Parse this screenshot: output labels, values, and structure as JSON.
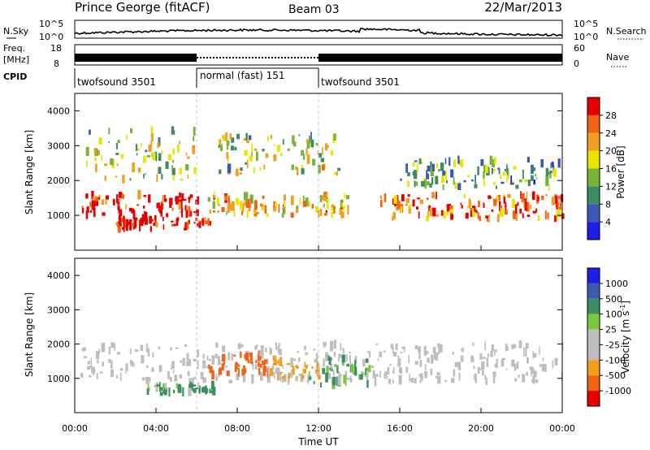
{
  "header": {
    "station": "Prince George (fitACF)",
    "beam": "Beam 03",
    "date": "22/Mar/2013"
  },
  "noise_panel": {
    "left_label": "N.Sky",
    "left_ticks": [
      "10^5",
      "10^0"
    ],
    "right_label": "N.Search",
    "right_ticks": [
      "10^5",
      "10^0"
    ]
  },
  "freq_panel": {
    "left_label_1": "Freq.",
    "left_label_2": "[MHz]",
    "left_ticks": [
      "18",
      "8"
    ],
    "right_label": "Nave",
    "right_ticks": [
      "60",
      "0"
    ]
  },
  "cpid": {
    "label": "CPID",
    "segments": [
      {
        "name": "twofsound 3501",
        "start": 0,
        "end": 6
      },
      {
        "name": "normal (fast) 151",
        "start": 6,
        "end": 12
      },
      {
        "name": "twofsound 3501",
        "start": 12,
        "end": 24
      }
    ]
  },
  "x_axis": {
    "label": "Time UT",
    "ticks": [
      "00:00",
      "04:00",
      "08:00",
      "12:00",
      "16:00",
      "20:00",
      "00:00"
    ]
  },
  "colors": {
    "power": [
      "#1e1ee6",
      "#3c5ab4",
      "#3c8c64",
      "#78b43c",
      "#e6e600",
      "#f0a01e",
      "#f06414",
      "#e60000"
    ],
    "velocity": [
      "#1e1ee6",
      "#3c5ab4",
      "#3c8c64",
      "#78c83c",
      "#bebebe",
      "#bebebe",
      "#f0a01e",
      "#f06414",
      "#e60000"
    ],
    "grey_scatter": "#bebebe"
  },
  "chart_data": [
    {
      "type": "heatmap",
      "title": "Power",
      "ylabel": "Slant Range [km]",
      "xlabel": "Time UT",
      "xlim": [
        "00:00",
        "24:00"
      ],
      "ylim": [
        0,
        4500
      ],
      "yticks": [
        1000,
        2000,
        3000,
        4000
      ],
      "colorbar": {
        "label": "Power [dB]",
        "ticks": [
          "4",
          "8",
          "12",
          "16",
          "20",
          "24",
          "28"
        ]
      },
      "features": [
        {
          "name": "main echo band",
          "t_start": 0.2,
          "t_end": 6.2,
          "range_km": [
            1000,
            1600
          ],
          "level_db": 28
        },
        {
          "name": "upper echo",
          "t_start": 0.5,
          "t_end": 6.0,
          "range_km": [
            2000,
            3500
          ],
          "level_db": 16
        },
        {
          "name": "ground band",
          "t_start": 2.0,
          "t_end": 6.8,
          "range_km": [
            600,
            900
          ],
          "level_db": 28
        },
        {
          "name": "mid band",
          "t_start": 6.5,
          "t_end": 13.5,
          "range_km": [
            1000,
            1600
          ],
          "level_db": 20
        },
        {
          "name": "high echoes",
          "t_start": 7.0,
          "t_end": 13.0,
          "range_km": [
            2200,
            3300
          ],
          "level_db": 16
        },
        {
          "name": "evening band",
          "t_start": 15.0,
          "t_end": 24.0,
          "range_km": [
            900,
            1600
          ],
          "level_db": 24
        },
        {
          "name": "evening upper",
          "t_start": 16.0,
          "t_end": 23.8,
          "range_km": [
            1800,
            2600
          ],
          "level_db": 12
        }
      ]
    },
    {
      "type": "heatmap",
      "title": "Velocity",
      "ylabel": "Slant Range [km]",
      "xlabel": "Time UT",
      "xlim": [
        "00:00",
        "24:00"
      ],
      "ylim": [
        0,
        4500
      ],
      "yticks": [
        1000,
        2000,
        3000,
        4000
      ],
      "colorbar": {
        "label": "Velocity [m s^-1]",
        "ticks": [
          "1000",
          "500",
          "100",
          "25",
          "-25",
          "-100",
          "-500",
          "-1000"
        ]
      },
      "features": [
        {
          "name": "ground scatter band",
          "t_start": 0.2,
          "t_end": 24.0,
          "range_km": [
            900,
            2000
          ],
          "velocity": 0
        },
        {
          "name": "morning negative",
          "t_start": 6.5,
          "t_end": 9.5,
          "range_km": [
            1100,
            1700
          ],
          "velocity": -500
        },
        {
          "name": "midday negative",
          "t_start": 9.5,
          "t_end": 12.0,
          "range_km": [
            1000,
            1600
          ],
          "velocity": -100
        },
        {
          "name": "positive patch",
          "t_start": 11.5,
          "t_end": 14.5,
          "range_km": [
            800,
            1600
          ],
          "velocity": 100
        },
        {
          "name": "low positive",
          "t_start": 3.5,
          "t_end": 6.8,
          "range_km": [
            600,
            800
          ],
          "velocity": 100
        }
      ]
    }
  ]
}
